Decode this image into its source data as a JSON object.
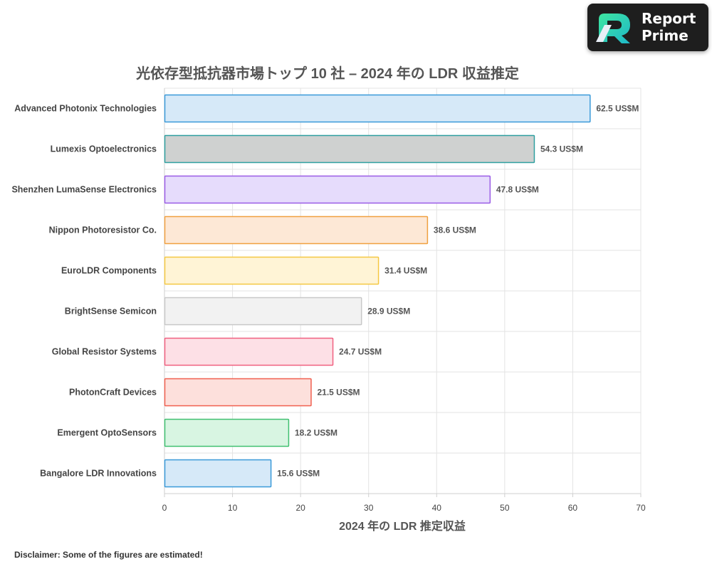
{
  "logo": {
    "line1": "Report",
    "line2": "Prime"
  },
  "disclaimer": "Disclaimer: Some of the figures are estimated!",
  "chart_data": {
    "type": "bar",
    "orientation": "horizontal",
    "title": "光依存型抵抗器市場トップ 10 社 – 2024 年の LDR 収益推定",
    "xlabel": "2024 年の LDR 推定収益",
    "ylabel": "",
    "xlim": [
      0,
      70
    ],
    "xticks": [
      0,
      10,
      20,
      30,
      40,
      50,
      60,
      70
    ],
    "grid": true,
    "value_suffix": " US$M",
    "categories": [
      "Advanced Photonix Technologies",
      "Lumexis Optoelectronics",
      "Shenzhen LumaSense Electronics",
      "Nippon Photoresistor Co.",
      "EuroLDR Components",
      "BrightSense Semicon",
      "Global Resistor Systems",
      "PhotonCraft Devices",
      "Emergent OptoSensors",
      "Bangalore LDR Innovations"
    ],
    "values": [
      62.5,
      54.3,
      47.8,
      38.6,
      31.4,
      28.9,
      24.7,
      21.5,
      18.2,
      15.6
    ],
    "data_labels": [
      "62.5 US$M",
      "54.3 US$M",
      "47.8 US$M",
      "38.6 US$M",
      "31.4 US$M",
      "28.9 US$M",
      "24.7 US$M",
      "21.5 US$M",
      "18.2 US$M",
      "15.6 US$M"
    ],
    "colors": [
      {
        "fill": "#d6e9f8",
        "stroke": "#3a9ad9"
      },
      {
        "fill": "#cfd1d0",
        "stroke": "#2fa0a0"
      },
      {
        "fill": "#e6dcfc",
        "stroke": "#9a5ce6"
      },
      {
        "fill": "#fde8d6",
        "stroke": "#f0a040"
      },
      {
        "fill": "#fff4d6",
        "stroke": "#f5c842"
      },
      {
        "fill": "#f2f2f2",
        "stroke": "#c8c8c8"
      },
      {
        "fill": "#fde0e6",
        "stroke": "#f06080"
      },
      {
        "fill": "#fde0dc",
        "stroke": "#f06050"
      },
      {
        "fill": "#d8f5e2",
        "stroke": "#40c070"
      },
      {
        "fill": "#d6e9f8",
        "stroke": "#3a9ad9"
      }
    ]
  }
}
